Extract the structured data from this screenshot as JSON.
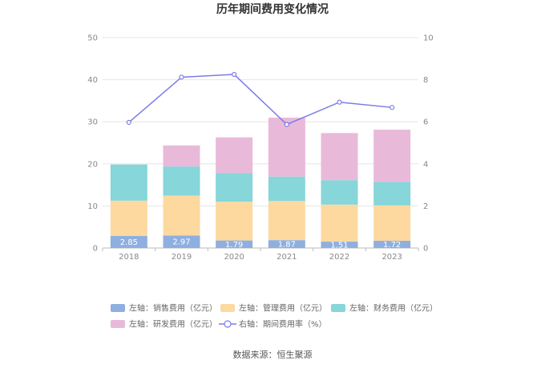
{
  "chart_data": {
    "type": "bar",
    "stacked": true,
    "title": "历年期间费用变化情况",
    "categories": [
      "2018",
      "2019",
      "2020",
      "2021",
      "2022",
      "2023"
    ],
    "left_axis": {
      "ylim": [
        0,
        50
      ],
      "ticks": [
        0,
        10,
        20,
        30,
        40,
        50
      ]
    },
    "right_axis": {
      "ylim": [
        0,
        10
      ],
      "ticks": [
        0,
        2,
        4,
        6,
        8,
        10
      ]
    },
    "series": [
      {
        "name": "左轴：销售费用（亿元）",
        "axis": "left",
        "type": "bar",
        "color": "#8eafe0",
        "values": [
          2.85,
          2.97,
          1.79,
          1.87,
          1.51,
          1.72
        ],
        "show_labels": true
      },
      {
        "name": "左轴：管理费用（亿元）",
        "axis": "left",
        "type": "bar",
        "color": "#fdd9a0",
        "values": [
          8.4,
          9.5,
          9.2,
          9.3,
          8.8,
          8.4
        ],
        "show_labels": false
      },
      {
        "name": "左轴：财务费用（亿元）",
        "axis": "left",
        "type": "bar",
        "color": "#86d6da",
        "values": [
          8.6,
          6.9,
          6.8,
          5.8,
          5.8,
          5.6
        ],
        "show_labels": false
      },
      {
        "name": "左轴：研发费用（亿元）",
        "axis": "left",
        "type": "bar",
        "color": "#e9b9da",
        "values": [
          0.0,
          5.0,
          8.5,
          14.0,
          11.2,
          12.4
        ],
        "show_labels": false
      },
      {
        "name": "右轴：期间费用率（%）",
        "axis": "right",
        "type": "line",
        "color": "#7b7bea",
        "values": [
          5.97,
          8.12,
          8.25,
          5.87,
          6.93,
          6.68
        ]
      }
    ],
    "grid": true,
    "legend_position": "bottom"
  },
  "source": "数据来源：恒生聚源"
}
